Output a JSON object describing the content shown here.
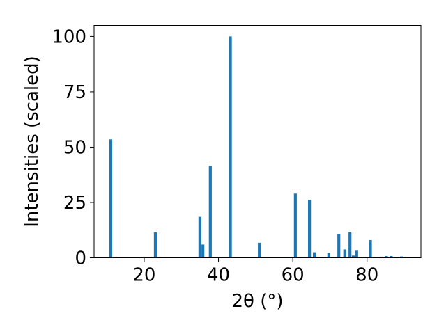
{
  "chart_data": {
    "type": "bar",
    "xlabel": "2θ (°)",
    "ylabel": "Intensities (scaled)",
    "xlim": [
      6.5,
      94.5
    ],
    "ylim": [
      0,
      105
    ],
    "xticks": [
      20,
      40,
      60,
      80
    ],
    "yticks": [
      0,
      25,
      50,
      75,
      100
    ],
    "grid": false,
    "bar_color": "#1f77b4",
    "bars": [
      {
        "x": 11.0,
        "y": 53.5
      },
      {
        "x": 23.0,
        "y": 11.5
      },
      {
        "x": 35.0,
        "y": 18.5
      },
      {
        "x": 35.8,
        "y": 6.0
      },
      {
        "x": 37.8,
        "y": 41.5
      },
      {
        "x": 43.2,
        "y": 100.0
      },
      {
        "x": 51.0,
        "y": 6.8
      },
      {
        "x": 60.7,
        "y": 29.0
      },
      {
        "x": 64.5,
        "y": 26.2
      },
      {
        "x": 65.8,
        "y": 2.5
      },
      {
        "x": 69.7,
        "y": 2.2
      },
      {
        "x": 72.4,
        "y": 10.8
      },
      {
        "x": 74.0,
        "y": 3.8
      },
      {
        "x": 75.4,
        "y": 11.5
      },
      {
        "x": 76.3,
        "y": 1.0
      },
      {
        "x": 77.2,
        "y": 3.2
      },
      {
        "x": 80.9,
        "y": 8.0
      },
      {
        "x": 83.9,
        "y": 0.5
      },
      {
        "x": 85.2,
        "y": 0.8
      },
      {
        "x": 86.5,
        "y": 0.8
      },
      {
        "x": 89.3,
        "y": 0.6
      }
    ]
  }
}
